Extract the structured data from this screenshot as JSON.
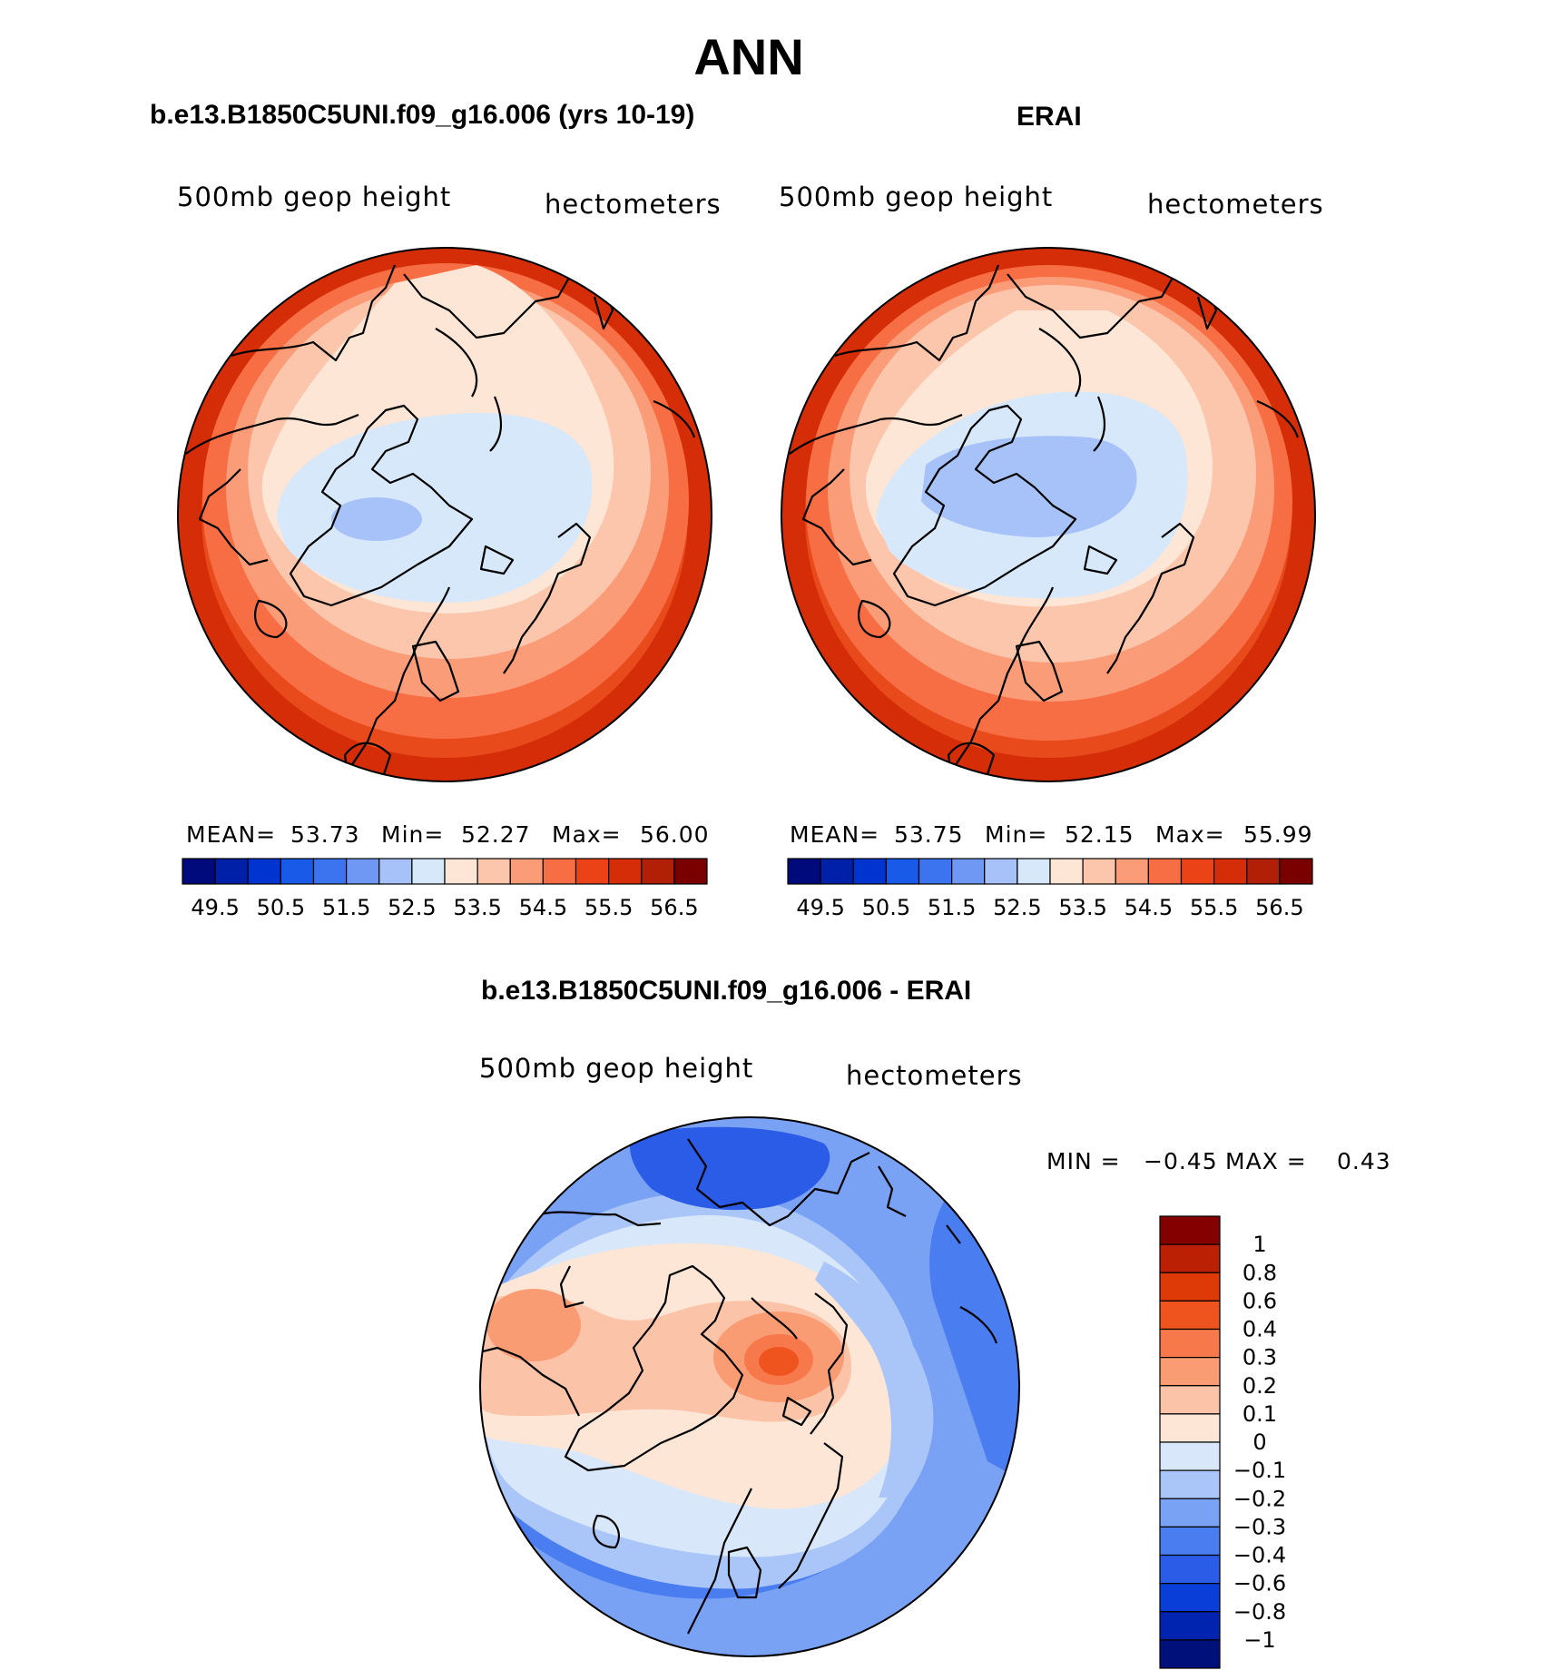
{
  "figure": {
    "title": "ANN"
  },
  "colors": {
    "abs_levels": [
      "#000a7a",
      "#0020a8",
      "#0034d0",
      "#1a5ae8",
      "#3c74f0",
      "#6e98f4",
      "#a6c2f8",
      "#d6e8fa",
      "#fde6d6",
      "#fcc6ac",
      "#fa9c78",
      "#f76e44",
      "#ec4218",
      "#d42d08",
      "#b01f06",
      "#7a0000"
    ],
    "diff_levels": [
      "#00107a",
      "#0024b0",
      "#0a3ed8",
      "#2a5ce8",
      "#4a7ef0",
      "#7aa2f4",
      "#aac6f8",
      "#d8e8fa",
      "#fde6d6",
      "#fbc4a8",
      "#f99c74",
      "#f7784a",
      "#f0541e",
      "#de3a08",
      "#bc2004",
      "#840000"
    ]
  },
  "chart_data": [
    {
      "type": "heatmap",
      "projection": "north-polar-stereographic",
      "title": "b.e13.B1850C5UNI.f09_g16.006 (yrs 10-19)",
      "left_label": "500mb geop height",
      "right_label": "hectometers",
      "stats": {
        "mean_label": "MEAN=",
        "mean": "53.73",
        "min_label": "Min=",
        "min": "52.27",
        "max_label": "Max=",
        "max": "56.00"
      },
      "colorbar_ticks": [
        "49.5",
        "50.5",
        "51.5",
        "52.5",
        "53.5",
        "54.5",
        "55.5",
        "56.5"
      ],
      "contour_levels": [
        49.5,
        50,
        50.5,
        51,
        51.5,
        52,
        52.5,
        53,
        53.5,
        54,
        54.5,
        55,
        55.5,
        56,
        56.5
      ],
      "field_range": [
        52.27,
        56.0
      ]
    },
    {
      "type": "heatmap",
      "projection": "north-polar-stereographic",
      "title": "ERAI",
      "left_label": "500mb geop height",
      "right_label": "hectometers",
      "stats": {
        "mean_label": "MEAN=",
        "mean": "53.75",
        "min_label": "Min=",
        "min": "52.15",
        "max_label": "Max=",
        "max": "55.99"
      },
      "colorbar_ticks": [
        "49.5",
        "50.5",
        "51.5",
        "52.5",
        "53.5",
        "54.5",
        "55.5",
        "56.5"
      ],
      "contour_levels": [
        49.5,
        50,
        50.5,
        51,
        51.5,
        52,
        52.5,
        53,
        53.5,
        54,
        54.5,
        55,
        55.5,
        56,
        56.5
      ],
      "field_range": [
        52.15,
        55.99
      ]
    },
    {
      "type": "heatmap",
      "projection": "north-polar-stereographic",
      "title": "b.e13.B1850C5UNI.f09_g16.006 - ERAI",
      "left_label": "500mb geop height",
      "right_label": "hectometers",
      "stats": {
        "min_label": "MIN =",
        "min": "−0.45",
        "max_label": "MAX =",
        "max": "0.43"
      },
      "colorbar_ticks": [
        "1",
        "0.8",
        "0.6",
        "0.4",
        "0.3",
        "0.2",
        "0.1",
        "0",
        "−0.1",
        "−0.2",
        "−0.3",
        "−0.4",
        "−0.6",
        "−0.8",
        "−1"
      ],
      "field_range": [
        -0.45,
        0.43
      ]
    }
  ]
}
